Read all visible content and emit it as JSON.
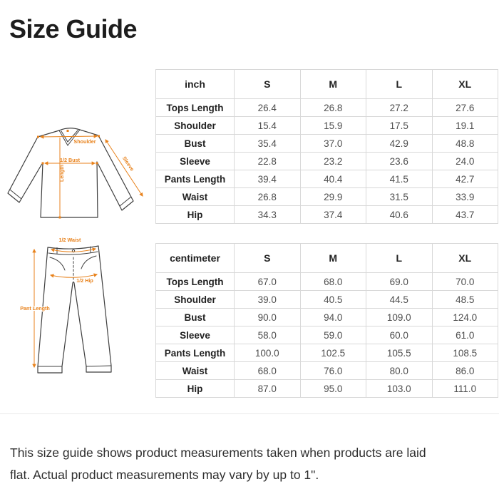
{
  "page": {
    "title": "Size Guide",
    "footer_lines": [
      "This size guide shows product measurements taken when products are laid",
      "flat. Actual product measurements may vary by up to 1\"."
    ]
  },
  "colors": {
    "annotation_orange": "#e8821c",
    "garment_outline": "#3f3f3f",
    "table_border": "#d8d8d8",
    "heading_text": "#1d1d1d",
    "value_text": "#4e4e4e"
  },
  "diagrams": {
    "shirt": {
      "labels": {
        "shoulder": "Shoulder",
        "half_bust": "1/2 Bust",
        "length": "Length",
        "sleeve": "Sleeve"
      }
    },
    "pants": {
      "labels": {
        "half_waist": "1/2 Waist",
        "half_hip": "1/2 Hip",
        "pant_length": "Pant Length"
      }
    }
  },
  "tables": [
    {
      "unit": "inch",
      "columns": [
        "S",
        "M",
        "L",
        "XL"
      ],
      "rows": [
        {
          "label": "Tops Length",
          "values": [
            "26.4",
            "26.8",
            "27.2",
            "27.6"
          ]
        },
        {
          "label": "Shoulder",
          "values": [
            "15.4",
            "15.9",
            "17.5",
            "19.1"
          ]
        },
        {
          "label": "Bust",
          "values": [
            "35.4",
            "37.0",
            "42.9",
            "48.8"
          ]
        },
        {
          "label": "Sleeve",
          "values": [
            "22.8",
            "23.2",
            "23.6",
            "24.0"
          ]
        },
        {
          "label": "Pants Length",
          "values": [
            "39.4",
            "40.4",
            "41.5",
            "42.7"
          ]
        },
        {
          "label": "Waist",
          "values": [
            "26.8",
            "29.9",
            "31.5",
            "33.9"
          ]
        },
        {
          "label": "Hip",
          "values": [
            "34.3",
            "37.4",
            "40.6",
            "43.7"
          ]
        }
      ]
    },
    {
      "unit": "centimeter",
      "columns": [
        "S",
        "M",
        "L",
        "XL"
      ],
      "rows": [
        {
          "label": "Tops Length",
          "values": [
            "67.0",
            "68.0",
            "69.0",
            "70.0"
          ]
        },
        {
          "label": "Shoulder",
          "values": [
            "39.0",
            "40.5",
            "44.5",
            "48.5"
          ]
        },
        {
          "label": "Bust",
          "values": [
            "90.0",
            "94.0",
            "109.0",
            "124.0"
          ]
        },
        {
          "label": "Sleeve",
          "values": [
            "58.0",
            "59.0",
            "60.0",
            "61.0"
          ]
        },
        {
          "label": "Pants Length",
          "values": [
            "100.0",
            "102.5",
            "105.5",
            "108.5"
          ]
        },
        {
          "label": "Waist",
          "values": [
            "68.0",
            "76.0",
            "80.0",
            "86.0"
          ]
        },
        {
          "label": "Hip",
          "values": [
            "87.0",
            "95.0",
            "103.0",
            "111.0"
          ]
        }
      ]
    }
  ]
}
